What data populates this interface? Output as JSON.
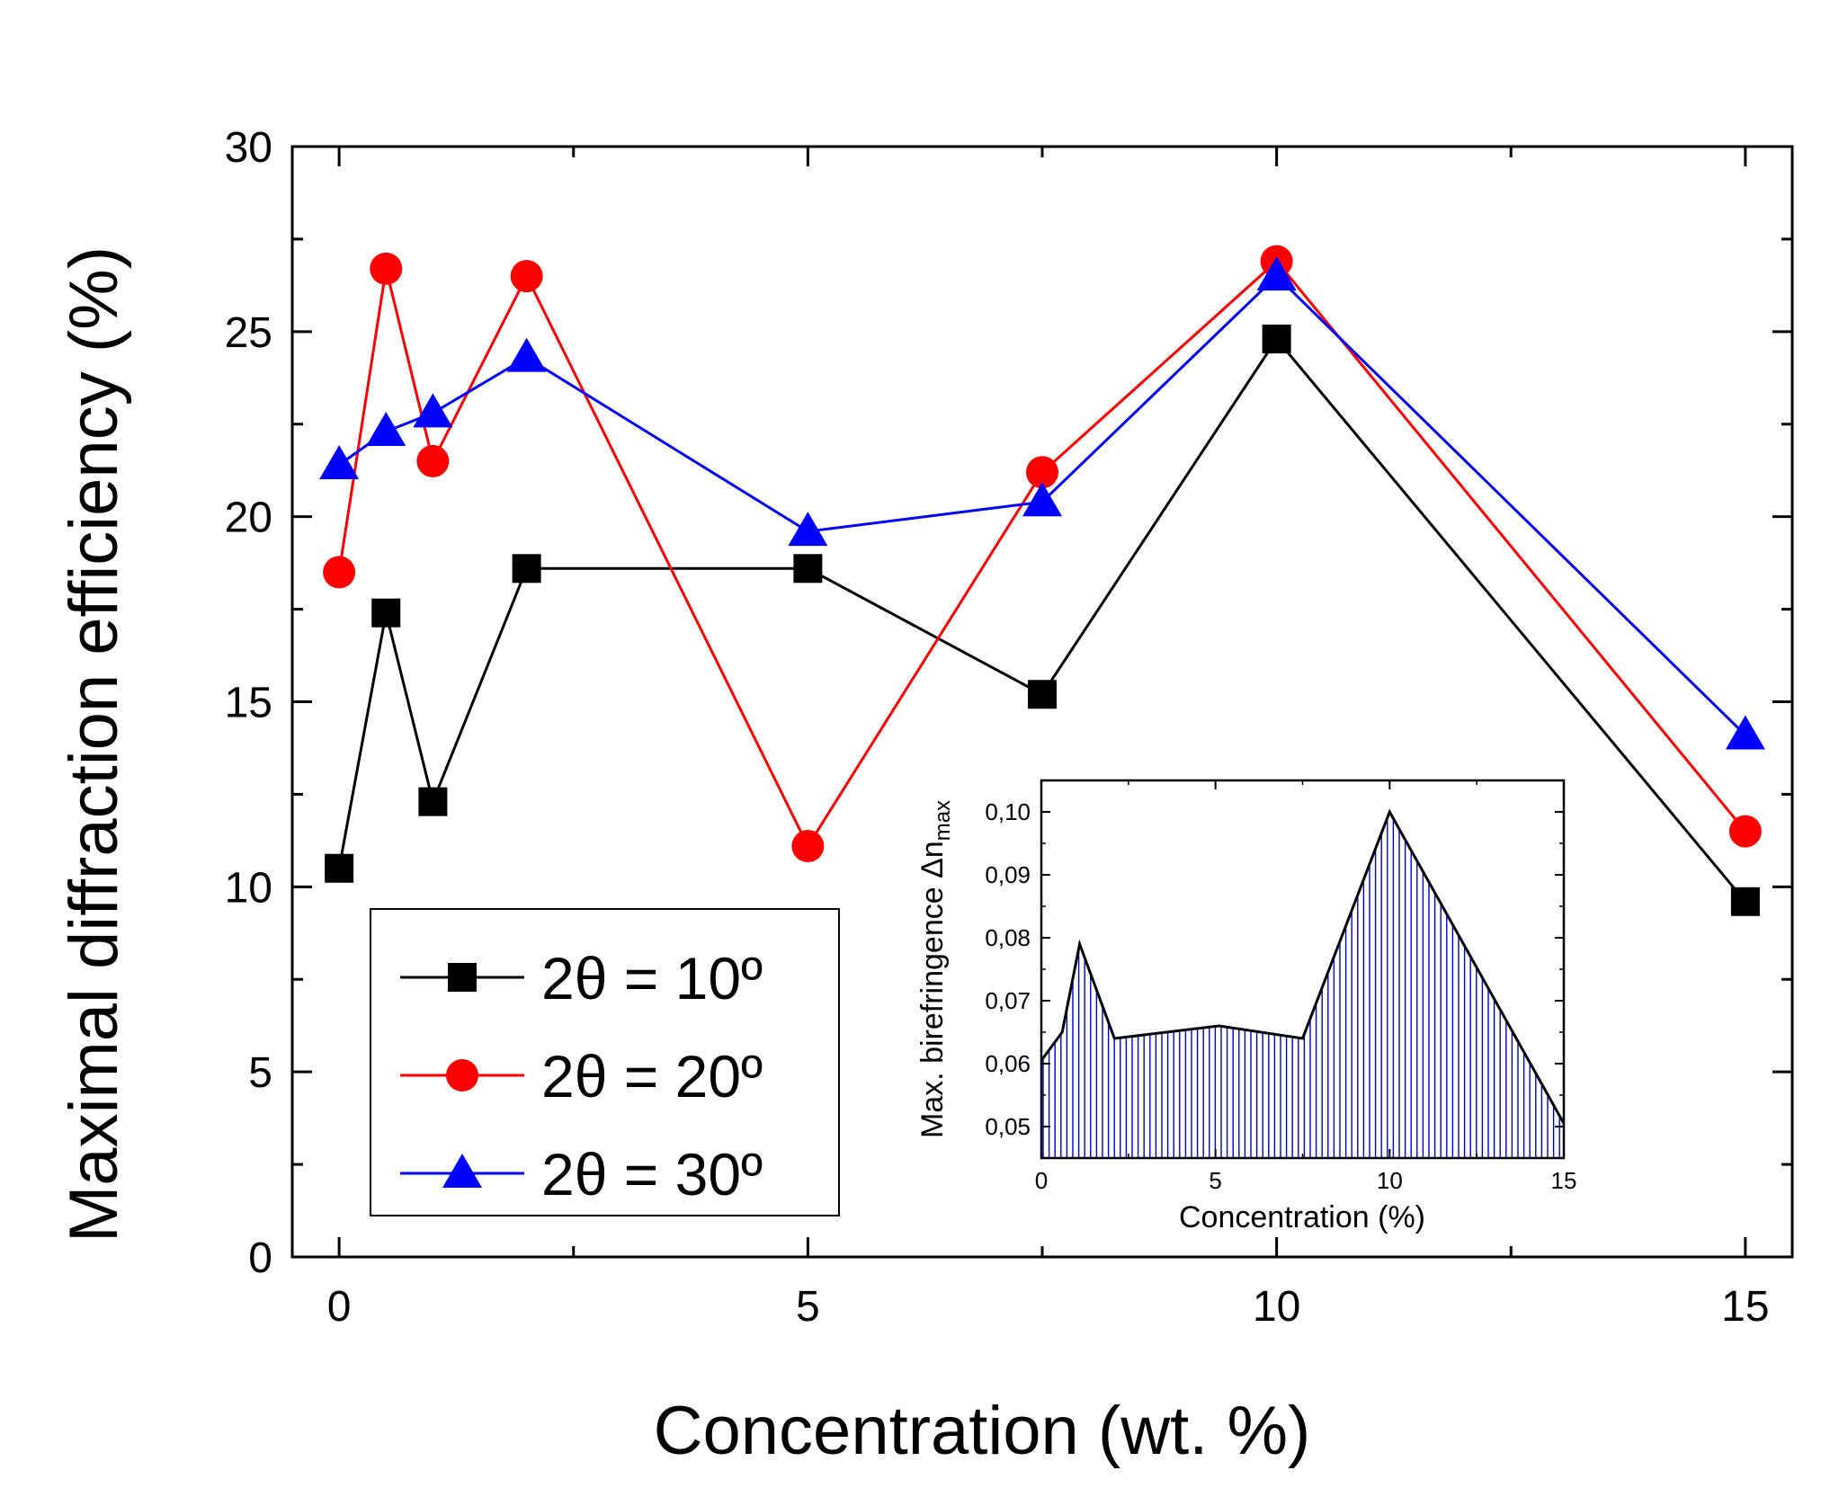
{
  "chart_data": [
    {
      "type": "line",
      "id": "main",
      "title": "",
      "xlabel": "Concentration (wt. %)",
      "ylabel": "Maximal diffraction efficiency (%)",
      "xlim": [
        -0.5,
        15.5
      ],
      "ylim": [
        0,
        30
      ],
      "x_ticks": [
        0,
        5,
        10,
        15
      ],
      "x_tick_labels": [
        "0",
        "5",
        "10",
        "15"
      ],
      "y_ticks": [
        0,
        5,
        10,
        15,
        20,
        25,
        30
      ],
      "y_tick_labels": [
        "0",
        "5",
        "10",
        "15",
        "20",
        "25",
        "30"
      ],
      "grid": false,
      "legend_position": "bottom-left",
      "series": [
        {
          "name": "2θ = 10º",
          "label": "2θ = 10º",
          "color": "#000000",
          "marker": "square",
          "x": [
            0,
            0.5,
            1,
            2,
            5,
            7.5,
            10,
            15
          ],
          "y": [
            10.5,
            17.4,
            12.3,
            18.6,
            18.6,
            15.2,
            24.8,
            9.6
          ]
        },
        {
          "name": "2θ = 20º",
          "label": "2θ = 20º",
          "color": "#ff0000",
          "marker": "circle",
          "x": [
            0,
            0.5,
            1,
            2,
            5,
            7.5,
            10,
            15
          ],
          "y": [
            18.5,
            26.7,
            21.5,
            26.5,
            11.1,
            21.2,
            26.9,
            11.5
          ]
        },
        {
          "name": "2θ = 30º",
          "label": "2θ = 30º",
          "color": "#0000ff",
          "marker": "triangle",
          "x": [
            0,
            0.5,
            1,
            2,
            5,
            7.5,
            10,
            15
          ],
          "y": [
            21.4,
            22.3,
            22.8,
            24.3,
            19.6,
            20.4,
            26.5,
            14.1
          ]
        }
      ]
    },
    {
      "type": "area",
      "id": "inset",
      "title": "",
      "xlabel": "Concentration (%)",
      "ylabel": "Max. birefringence Δn",
      "ylabel_subscript": "max",
      "xlim": [
        0,
        15
      ],
      "ylim": [
        0.045,
        0.105
      ],
      "x_ticks": [
        0,
        5,
        10,
        15
      ],
      "x_tick_labels": [
        "0",
        "5",
        "10",
        "15"
      ],
      "y_ticks": [
        0.05,
        0.06,
        0.07,
        0.08,
        0.09,
        0.1
      ],
      "y_tick_labels": [
        "0,05",
        "0,06",
        "0,07",
        "0,08",
        "0,09",
        "0,10"
      ],
      "grid": false,
      "color": "#0000cc",
      "x": [
        0,
        0.6,
        1.1,
        2.1,
        5.1,
        7.5,
        10,
        15
      ],
      "y": [
        0.0605,
        0.065,
        0.079,
        0.064,
        0.066,
        0.064,
        0.1,
        0.0505
      ]
    }
  ]
}
